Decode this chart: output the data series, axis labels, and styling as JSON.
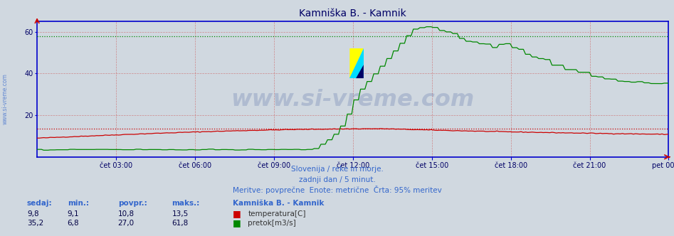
{
  "title": "Kamniška B. - Kamnik",
  "bg_color": "#d0d8e0",
  "plot_bg_color": "#d0d8e0",
  "axis_color": "#0000cc",
  "text_color": "#3366cc",
  "ylim": [
    0,
    65
  ],
  "yticks": [
    20,
    40,
    60
  ],
  "ytick_labels": [
    "20",
    "40",
    "60"
  ],
  "xtick_labels": [
    "čet 03:00",
    "čet 06:00",
    "čet 09:00",
    "čet 12:00",
    "čet 15:00",
    "čet 18:00",
    "čet 21:00",
    "pet 00:00"
  ],
  "xtick_positions": [
    0.125,
    0.25,
    0.375,
    0.5,
    0.625,
    0.75,
    0.875,
    1.0
  ],
  "subtitle1": "Slovenija / reke in morje.",
  "subtitle2": "zadnji dan / 5 minut.",
  "subtitle3": "Meritve: povprečne  Enote: metrične  Črta: 95% meritev",
  "legend_title": "Kamniška B. - Kamnik",
  "legend_items": [
    {
      "label": "temperatura[C]",
      "color": "#cc0000"
    },
    {
      "label": "pretok[m3/s]",
      "color": "#008800"
    }
  ],
  "stats_headers": [
    "sedaj:",
    "min.:",
    "povpr.:",
    "maks.:"
  ],
  "stats_row1": [
    "9,8",
    "9,1",
    "10,8",
    "13,5"
  ],
  "stats_row2": [
    "35,2",
    "6,8",
    "27,0",
    "61,8"
  ],
  "hline_red": 13.5,
  "hline_green": 57.8,
  "watermark": "www.si-vreme.com",
  "watermark_color": "#1a3a8a",
  "watermark_alpha": 0.18,
  "temp_color": "#cc0000",
  "flow_color": "#008800",
  "grid_v_color": "#cc6666",
  "grid_h_color": "#cc6666",
  "border_color": "#0000cc",
  "sidebar_text": "www.si-vreme.com"
}
